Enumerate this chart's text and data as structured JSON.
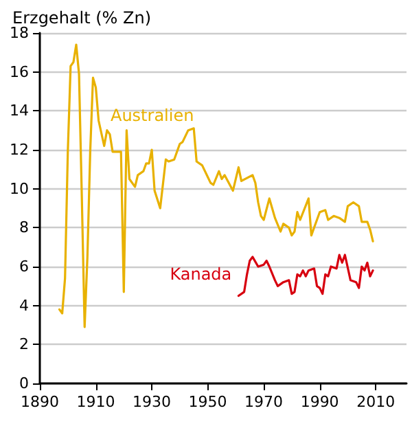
{
  "chart_data": {
    "type": "line",
    "title": "Erzgehalt (% Zn)",
    "xlim": [
      1890,
      2021
    ],
    "xticks": [
      1890,
      1910,
      1930,
      1950,
      1970,
      1990,
      2010
    ],
    "ylim": [
      0,
      18
    ],
    "yticks": [
      0,
      2,
      4,
      6,
      8,
      10,
      12,
      14,
      16,
      18
    ],
    "grid": "y",
    "legend": false,
    "marker": "none",
    "line_style": "solid",
    "series": [
      {
        "name": "Australien",
        "color": "#e8b100",
        "x": [
          1897,
          1898,
          1899,
          1900,
          1901,
          1902,
          1903,
          1904,
          1905,
          1906,
          1907,
          1908,
          1909,
          1910,
          1911,
          1913,
          1914,
          1915,
          1916,
          1918,
          1919,
          1920,
          1921,
          1922,
          1924,
          1925,
          1927,
          1928,
          1929,
          1930,
          1931,
          1933,
          1935,
          1936,
          1938,
          1940,
          1941,
          1942,
          1943,
          1945,
          1946,
          1948,
          1949,
          1951,
          1952,
          1954,
          1955,
          1956,
          1959,
          1961,
          1962,
          1966,
          1967,
          1968,
          1969,
          1970,
          1972,
          1973,
          1974,
          1976,
          1977,
          1979,
          1980,
          1981,
          1982,
          1983,
          1986,
          1987,
          1988,
          1990,
          1992,
          1993,
          1995,
          1997,
          1999,
          2000,
          2002,
          2004,
          2005,
          2007,
          2008,
          2009
        ],
        "values": [
          3.8,
          3.6,
          5.4,
          11.9,
          16.3,
          16.5,
          17.4,
          15.9,
          9.6,
          2.9,
          6.5,
          11.9,
          15.7,
          15.2,
          13.5,
          12.2,
          13.0,
          12.8,
          11.9,
          11.9,
          11.9,
          4.7,
          13.0,
          10.5,
          10.1,
          10.7,
          10.9,
          11.3,
          11.3,
          12.0,
          9.9,
          9.0,
          11.5,
          11.4,
          11.5,
          12.3,
          12.4,
          12.7,
          13.0,
          13.1,
          11.4,
          11.2,
          10.9,
          10.3,
          10.2,
          10.9,
          10.5,
          10.7,
          9.9,
          11.1,
          10.4,
          10.7,
          10.3,
          9.3,
          8.6,
          8.4,
          9.5,
          9.0,
          8.5,
          7.8,
          8.2,
          8.0,
          7.6,
          7.8,
          8.8,
          8.4,
          9.5,
          7.6,
          8.0,
          8.8,
          8.9,
          8.4,
          8.6,
          8.5,
          8.3,
          9.1,
          9.3,
          9.1,
          8.3,
          8.3,
          7.9,
          7.3
        ]
      },
      {
        "name": "Kanada",
        "color": "#d7000f",
        "x": [
          1961,
          1963,
          1964,
          1965,
          1966,
          1968,
          1970,
          1971,
          1972,
          1974,
          1975,
          1977,
          1979,
          1980,
          1981,
          1982,
          1983,
          1984,
          1985,
          1986,
          1988,
          1989,
          1990,
          1991,
          1992,
          1993,
          1994,
          1996,
          1997,
          1998,
          1999,
          2001,
          2003,
          2004,
          2005,
          2006,
          2007,
          2008,
          2009
        ],
        "values": [
          4.5,
          4.7,
          5.6,
          6.3,
          6.5,
          6.0,
          6.1,
          6.3,
          6.0,
          5.3,
          5.0,
          5.2,
          5.3,
          4.6,
          4.7,
          5.6,
          5.5,
          5.8,
          5.5,
          5.8,
          5.9,
          5.0,
          4.9,
          4.6,
          5.6,
          5.5,
          6.0,
          5.9,
          6.6,
          6.2,
          6.6,
          5.3,
          5.2,
          4.9,
          6.0,
          5.8,
          6.2,
          5.5,
          5.8
        ]
      }
    ]
  }
}
